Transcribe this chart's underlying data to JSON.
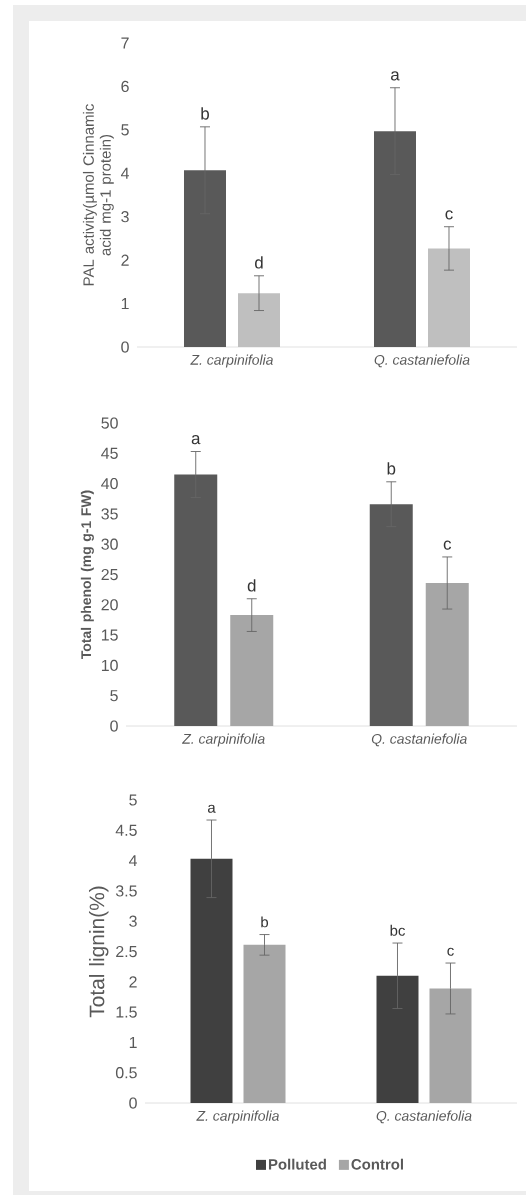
{
  "chart_data": [
    {
      "type": "bar",
      "ylabel": "PAL activity(µmol Cinnamic acid mg-1 protein)",
      "categories": [
        "Z. carpinifolia",
        "Q. castaniefolia"
      ],
      "series": [
        {
          "color": "#595959",
          "values": [
            4.07,
            4.97
          ],
          "errors": [
            1.0,
            1.0
          ],
          "value_labels": [
            "b",
            "a"
          ]
        },
        {
          "color": "#bfbfbf",
          "values": [
            1.24,
            2.27
          ],
          "errors": [
            0.4,
            0.5
          ],
          "value_labels": [
            "d",
            "c"
          ]
        }
      ],
      "ylim": [
        0,
        7
      ],
      "yticks": [
        0,
        1,
        2,
        3,
        4,
        5,
        6,
        7
      ]
    },
    {
      "type": "bar",
      "ylabel": "Total phenol (mg g-1 FW)",
      "categories": [
        "Z. carpinifolia",
        "Q. castaniefolia"
      ],
      "series": [
        {
          "color": "#595959",
          "values": [
            41.5,
            36.6
          ],
          "errors": [
            3.8,
            3.7
          ],
          "value_labels": [
            "a",
            "b"
          ]
        },
        {
          "color": "#a6a6a6",
          "values": [
            18.3,
            23.6
          ],
          "errors": [
            2.7,
            4.3
          ],
          "value_labels": [
            "d",
            "c"
          ]
        }
      ],
      "ylim": [
        0,
        50
      ],
      "yticks": [
        0,
        5,
        10,
        15,
        20,
        25,
        30,
        35,
        40,
        45,
        50
      ]
    },
    {
      "type": "bar",
      "ylabel": "Total lignin(%)",
      "categories": [
        "Z. carpinifolia",
        "Q. castaniefolia"
      ],
      "series": [
        {
          "name": "Polluted",
          "color": "#404040",
          "values": [
            4.03,
            2.1
          ],
          "errors": [
            0.64,
            0.54
          ],
          "value_labels": [
            "a",
            "bc"
          ]
        },
        {
          "name": "Control",
          "color": "#a6a6a6",
          "values": [
            2.61,
            1.89
          ],
          "errors": [
            0.17,
            0.42
          ],
          "value_labels": [
            "b",
            "c"
          ]
        }
      ],
      "ylim": [
        0,
        5
      ],
      "yticks": [
        0,
        0.5,
        1,
        1.5,
        2,
        2.5,
        3,
        3.5,
        4,
        4.5,
        5
      ],
      "legend": "bottom"
    }
  ]
}
